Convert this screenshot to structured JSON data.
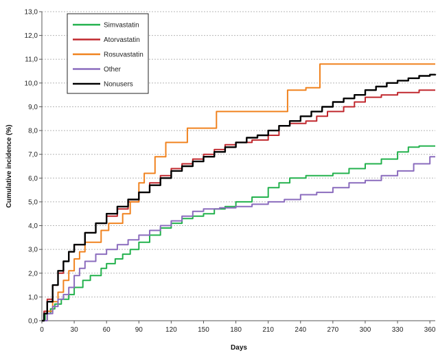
{
  "chart_data": {
    "type": "line",
    "step": true,
    "xlabel": "Days",
    "ylabel": "Cumulative incidence (%)",
    "xlim": [
      0,
      365
    ],
    "ylim": [
      0,
      13
    ],
    "x_ticks": [
      0,
      30,
      60,
      90,
      120,
      150,
      180,
      210,
      240,
      270,
      300,
      330,
      360
    ],
    "y_ticks": [
      0,
      1,
      2,
      3,
      4,
      5,
      6,
      7,
      8,
      9,
      10,
      11,
      12,
      13
    ],
    "y_tick_labels": [
      "0,0",
      "1,0",
      "2,0",
      "3,0",
      "4,0",
      "5,0",
      "6,0",
      "7,0",
      "8,0",
      "9,0",
      "10,0",
      "11,0",
      "12,0",
      "13,0"
    ],
    "grid": "horizontal-dotted",
    "legend_position": "top-left",
    "series": [
      {
        "name": "Simvastatin",
        "color": "#22b14c",
        "points": [
          [
            0,
            0
          ],
          [
            3,
            0.3
          ],
          [
            8,
            0.5
          ],
          [
            12,
            0.7
          ],
          [
            18,
            0.9
          ],
          [
            25,
            1.1
          ],
          [
            30,
            1.4
          ],
          [
            38,
            1.7
          ],
          [
            45,
            1.9
          ],
          [
            55,
            2.2
          ],
          [
            60,
            2.4
          ],
          [
            68,
            2.6
          ],
          [
            75,
            2.8
          ],
          [
            82,
            3.0
          ],
          [
            90,
            3.3
          ],
          [
            100,
            3.6
          ],
          [
            110,
            3.9
          ],
          [
            120,
            4.1
          ],
          [
            130,
            4.3
          ],
          [
            140,
            4.4
          ],
          [
            150,
            4.5
          ],
          [
            160,
            4.7
          ],
          [
            170,
            4.8
          ],
          [
            180,
            5.0
          ],
          [
            195,
            5.2
          ],
          [
            210,
            5.6
          ],
          [
            220,
            5.8
          ],
          [
            230,
            6.0
          ],
          [
            245,
            6.1
          ],
          [
            260,
            6.1
          ],
          [
            270,
            6.2
          ],
          [
            285,
            6.4
          ],
          [
            300,
            6.6
          ],
          [
            315,
            6.8
          ],
          [
            330,
            7.1
          ],
          [
            340,
            7.3
          ],
          [
            350,
            7.35
          ],
          [
            365,
            7.35
          ]
        ]
      },
      {
        "name": "Atorvastatin",
        "color": "#c0272d",
        "points": [
          [
            0,
            0
          ],
          [
            2,
            0.4
          ],
          [
            5,
            0.9
          ],
          [
            10,
            1.5
          ],
          [
            15,
            2.0
          ],
          [
            20,
            2.5
          ],
          [
            25,
            2.9
          ],
          [
            30,
            3.2
          ],
          [
            40,
            3.7
          ],
          [
            50,
            4.1
          ],
          [
            60,
            4.4
          ],
          [
            70,
            4.7
          ],
          [
            80,
            5.0
          ],
          [
            90,
            5.4
          ],
          [
            100,
            5.8
          ],
          [
            110,
            6.1
          ],
          [
            120,
            6.4
          ],
          [
            130,
            6.6
          ],
          [
            140,
            6.8
          ],
          [
            150,
            7.0
          ],
          [
            160,
            7.2
          ],
          [
            170,
            7.4
          ],
          [
            180,
            7.5
          ],
          [
            195,
            7.6
          ],
          [
            210,
            7.8
          ],
          [
            220,
            8.2
          ],
          [
            230,
            8.3
          ],
          [
            245,
            8.4
          ],
          [
            255,
            8.6
          ],
          [
            265,
            8.8
          ],
          [
            280,
            9.0
          ],
          [
            290,
            9.2
          ],
          [
            300,
            9.4
          ],
          [
            315,
            9.5
          ],
          [
            330,
            9.6
          ],
          [
            340,
            9.6
          ],
          [
            350,
            9.7
          ],
          [
            365,
            9.7
          ]
        ]
      },
      {
        "name": "Rosuvastatin",
        "color": "#f0821e",
        "points": [
          [
            0,
            0
          ],
          [
            5,
            0.4
          ],
          [
            10,
            0.8
          ],
          [
            15,
            1.2
          ],
          [
            20,
            1.7
          ],
          [
            25,
            2.1
          ],
          [
            30,
            2.6
          ],
          [
            35,
            2.9
          ],
          [
            40,
            3.3
          ],
          [
            55,
            3.8
          ],
          [
            62,
            4.1
          ],
          [
            75,
            4.5
          ],
          [
            82,
            5.0
          ],
          [
            90,
            5.8
          ],
          [
            95,
            6.2
          ],
          [
            105,
            6.9
          ],
          [
            115,
            7.5
          ],
          [
            135,
            8.1
          ],
          [
            150,
            8.1
          ],
          [
            162,
            8.8
          ],
          [
            200,
            8.8
          ],
          [
            228,
            9.7
          ],
          [
            245,
            9.8
          ],
          [
            258,
            10.8
          ],
          [
            365,
            10.8
          ]
        ]
      },
      {
        "name": "Other",
        "color": "#8a6bbd",
        "points": [
          [
            0,
            0
          ],
          [
            5,
            0.3
          ],
          [
            10,
            0.6
          ],
          [
            15,
            0.9
          ],
          [
            20,
            1.1
          ],
          [
            25,
            1.4
          ],
          [
            30,
            1.9
          ],
          [
            35,
            2.2
          ],
          [
            40,
            2.5
          ],
          [
            50,
            2.8
          ],
          [
            60,
            3.0
          ],
          [
            70,
            3.2
          ],
          [
            80,
            3.4
          ],
          [
            90,
            3.6
          ],
          [
            100,
            3.8
          ],
          [
            110,
            4.0
          ],
          [
            120,
            4.2
          ],
          [
            130,
            4.4
          ],
          [
            140,
            4.6
          ],
          [
            150,
            4.7
          ],
          [
            165,
            4.75
          ],
          [
            180,
            4.8
          ],
          [
            195,
            4.9
          ],
          [
            210,
            5.0
          ],
          [
            225,
            5.1
          ],
          [
            240,
            5.3
          ],
          [
            255,
            5.4
          ],
          [
            270,
            5.6
          ],
          [
            285,
            5.8
          ],
          [
            300,
            5.9
          ],
          [
            315,
            6.1
          ],
          [
            330,
            6.3
          ],
          [
            345,
            6.6
          ],
          [
            360,
            6.9
          ],
          [
            365,
            6.9
          ]
        ]
      },
      {
        "name": "Nonusers",
        "color": "#000000",
        "points": [
          [
            0,
            0
          ],
          [
            2,
            0.3
          ],
          [
            5,
            0.8
          ],
          [
            10,
            1.5
          ],
          [
            15,
            2.1
          ],
          [
            20,
            2.5
          ],
          [
            25,
            2.9
          ],
          [
            30,
            3.2
          ],
          [
            40,
            3.7
          ],
          [
            50,
            4.1
          ],
          [
            60,
            4.5
          ],
          [
            70,
            4.8
          ],
          [
            80,
            5.1
          ],
          [
            90,
            5.4
          ],
          [
            100,
            5.7
          ],
          [
            110,
            6.0
          ],
          [
            120,
            6.3
          ],
          [
            130,
            6.5
          ],
          [
            140,
            6.7
          ],
          [
            150,
            6.9
          ],
          [
            160,
            7.1
          ],
          [
            170,
            7.3
          ],
          [
            180,
            7.5
          ],
          [
            190,
            7.7
          ],
          [
            200,
            7.8
          ],
          [
            210,
            8.0
          ],
          [
            220,
            8.2
          ],
          [
            230,
            8.4
          ],
          [
            240,
            8.6
          ],
          [
            250,
            8.8
          ],
          [
            260,
            9.0
          ],
          [
            270,
            9.2
          ],
          [
            280,
            9.35
          ],
          [
            290,
            9.5
          ],
          [
            300,
            9.7
          ],
          [
            310,
            9.85
          ],
          [
            320,
            10.0
          ],
          [
            330,
            10.1
          ],
          [
            340,
            10.2
          ],
          [
            350,
            10.3
          ],
          [
            360,
            10.35
          ],
          [
            365,
            10.38
          ]
        ]
      }
    ]
  }
}
